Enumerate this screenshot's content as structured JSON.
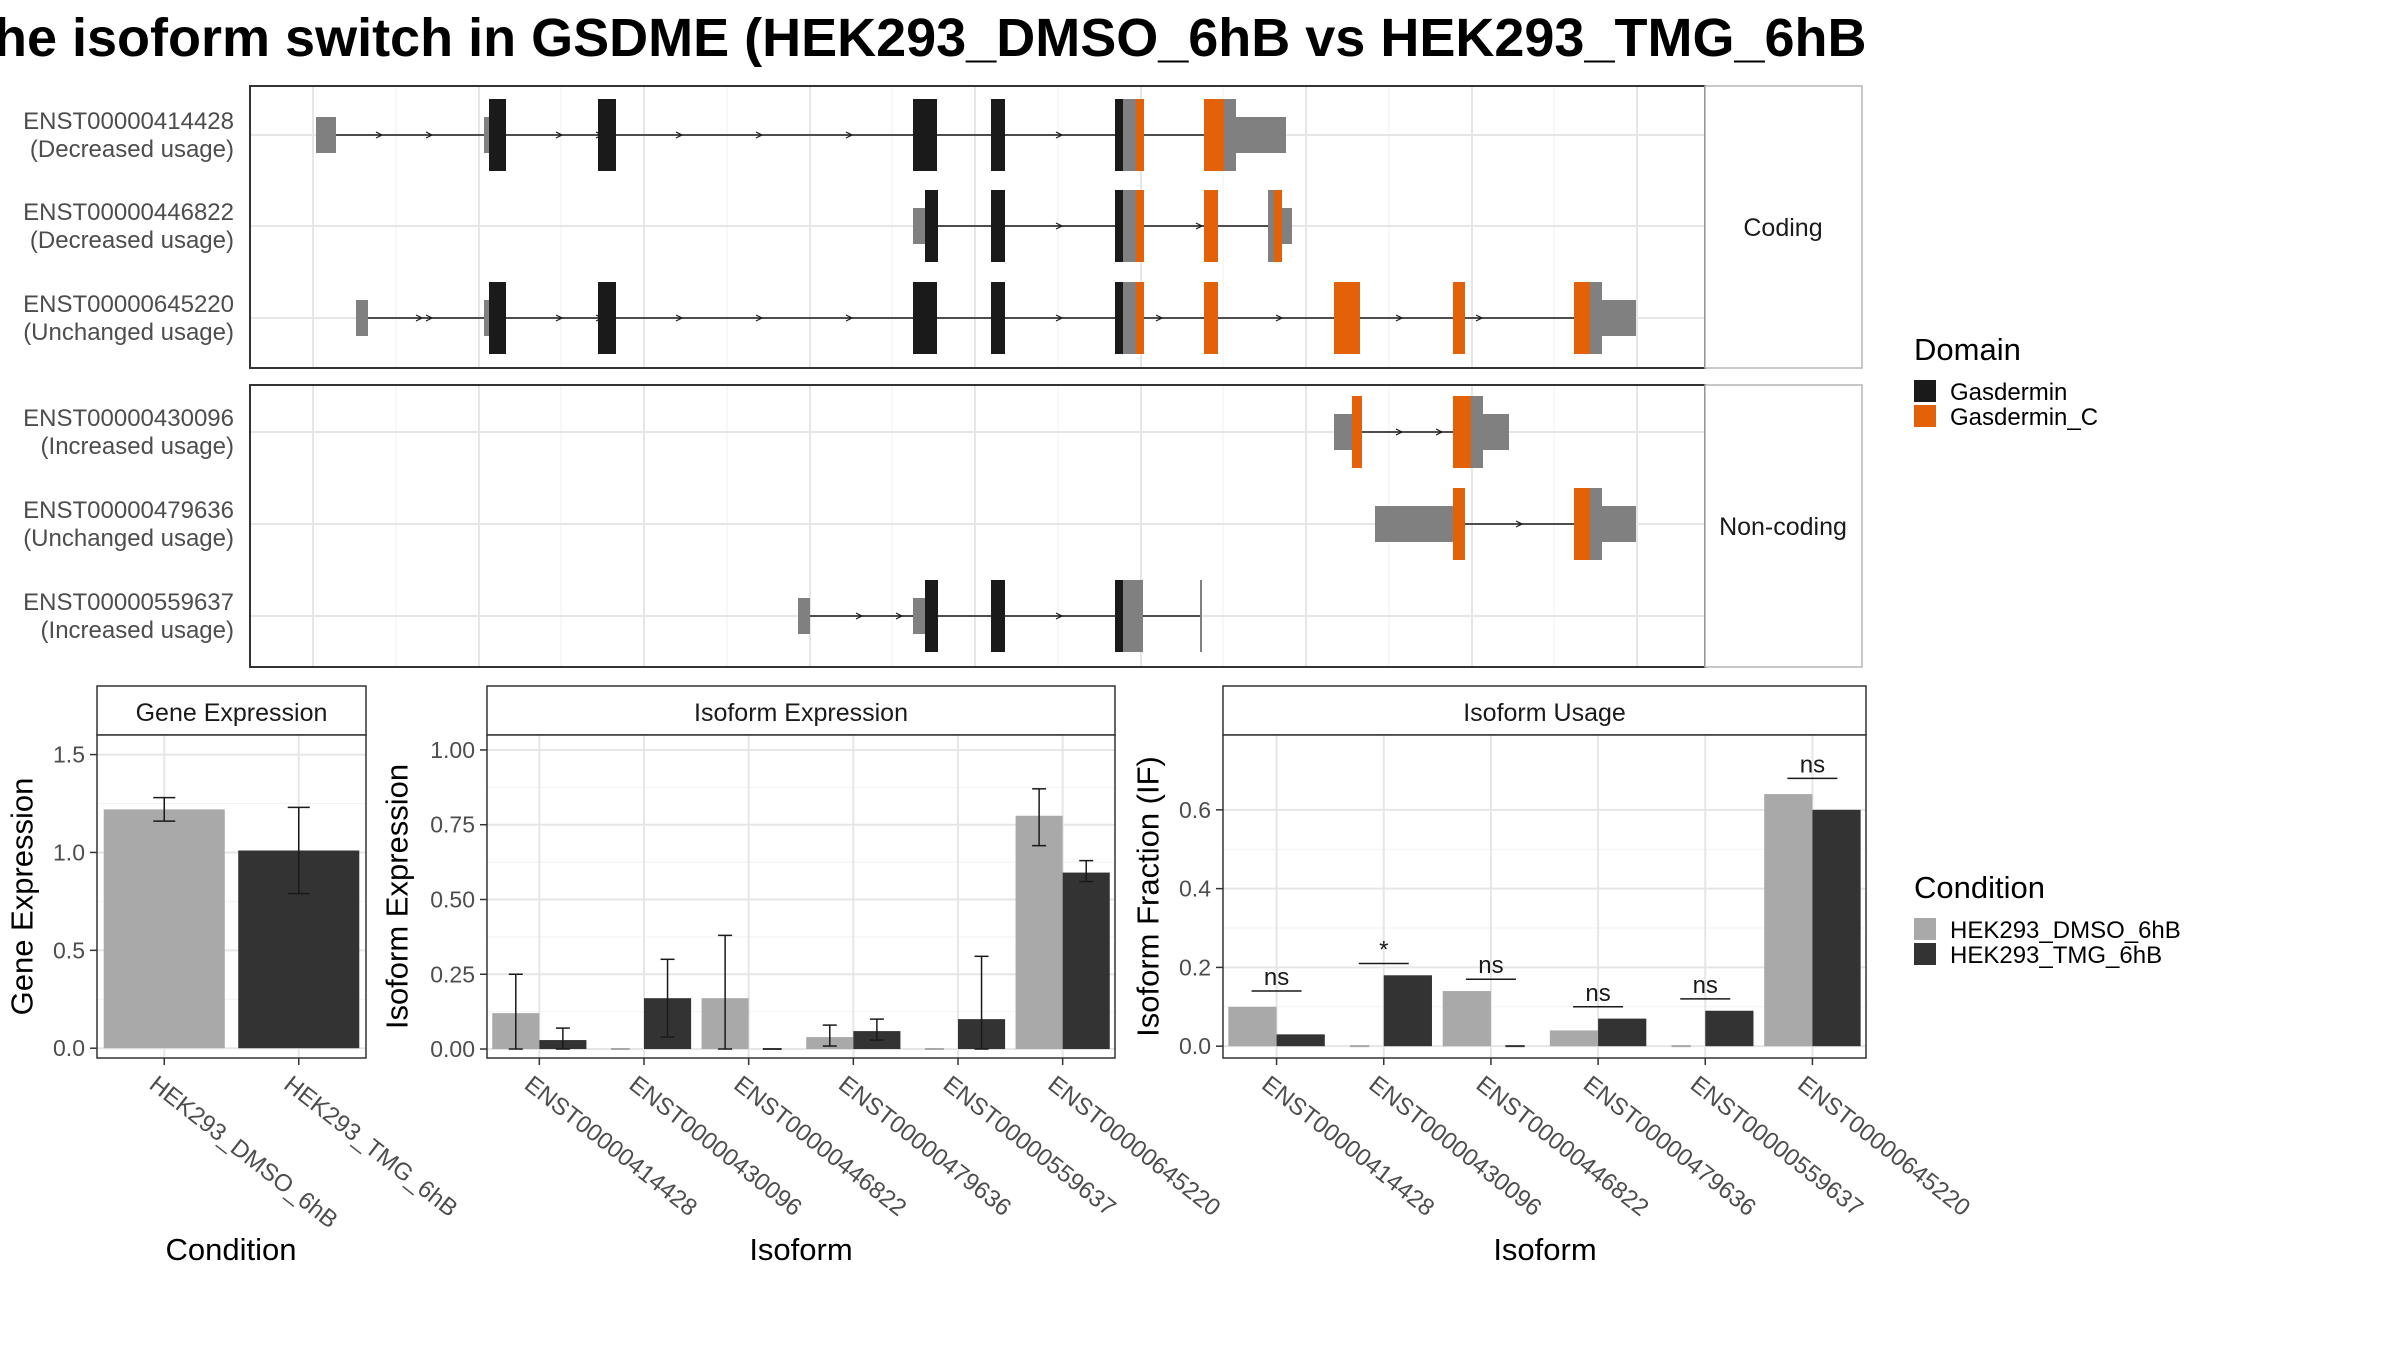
{
  "title": "he isoform switch in GSDME (HEK293_DMSO_6hB vs HEK293_TMG_6hB",
  "structure": {
    "coding_facet": "Coding",
    "noncoding_facet": "Non-coding",
    "transcripts": [
      {
        "id": "ENST00000414428",
        "usage": "(Decreased usage)",
        "facet": "Coding"
      },
      {
        "id": "ENST00000446822",
        "usage": "(Decreased usage)",
        "facet": "Coding"
      },
      {
        "id": "ENST00000645220",
        "usage": "(Unchanged usage)",
        "facet": "Coding"
      },
      {
        "id": "ENST00000430096",
        "usage": "(Increased usage)",
        "facet": "Non-coding"
      },
      {
        "id": "ENST00000479636",
        "usage": "(Unchanged usage)",
        "facet": "Non-coding"
      },
      {
        "id": "ENST00000559637",
        "usage": "(Increased usage)",
        "facet": "Non-coding"
      }
    ]
  },
  "legend_domain": {
    "title": "Domain",
    "items": [
      {
        "label": "Gasdermin",
        "color": "#1a1a1a"
      },
      {
        "label": "Gasdermin_C",
        "color": "#e36209"
      }
    ]
  },
  "legend_condition": {
    "title": "Condition",
    "items": [
      {
        "label": "HEK293_DMSO_6hB",
        "color": "#a9a9a9"
      },
      {
        "label": "HEK293_TMG_6hB",
        "color": "#333333"
      }
    ]
  },
  "chart_data": [
    {
      "type": "bar",
      "title": "Gene Expression",
      "xlabel": "Condition",
      "ylabel": "Gene Expression",
      "ylim": [
        -0.05,
        1.6
      ],
      "yticks": [
        "0.0",
        "0.5",
        "1.0",
        "1.5"
      ],
      "categories": [
        "HEK293_DMSO_6hB",
        "HEK293_TMG_6hB"
      ],
      "values": [
        1.22,
        1.01
      ],
      "errors": [
        [
          1.16,
          1.28
        ],
        [
          0.79,
          1.23
        ]
      ]
    },
    {
      "type": "bar",
      "title": "Isoform Expression",
      "xlabel": "Isoform",
      "ylabel": "Isoform Expression",
      "ylim": [
        -0.03,
        1.05
      ],
      "yticks": [
        "0.00",
        "0.25",
        "0.50",
        "0.75",
        "1.00"
      ],
      "categories": [
        "ENST00000414428",
        "ENST00000430096",
        "ENST00000446822",
        "ENST00000479636",
        "ENST00000559637",
        "ENST00000645220"
      ],
      "series": [
        {
          "name": "HEK293_DMSO_6hB",
          "values": [
            0.12,
            0.0,
            0.17,
            0.04,
            0.0,
            0.78
          ],
          "errors": [
            [
              0.0,
              0.25
            ],
            [
              0.0,
              0.0
            ],
            [
              0.0,
              0.38
            ],
            [
              0.01,
              0.08
            ],
            [
              0.0,
              0.0
            ],
            [
              0.68,
              0.87
            ]
          ]
        },
        {
          "name": "HEK293_TMG_6hB",
          "values": [
            0.03,
            0.17,
            0.0,
            0.06,
            0.1,
            0.59
          ],
          "errors": [
            [
              0.0,
              0.07
            ],
            [
              0.04,
              0.3
            ],
            [
              0.0,
              0.0
            ],
            [
              0.03,
              0.1
            ],
            [
              0.0,
              0.31
            ],
            [
              0.56,
              0.63
            ]
          ]
        }
      ]
    },
    {
      "type": "bar",
      "title": "Isoform Usage",
      "xlabel": "Isoform",
      "ylabel": "Isoform Fraction (IF)",
      "ylim": [
        -0.03,
        0.79
      ],
      "yticks": [
        "0.0",
        "0.2",
        "0.4",
        "0.6"
      ],
      "categories": [
        "ENST00000414428",
        "ENST00000430096",
        "ENST00000446822",
        "ENST00000479636",
        "ENST00000559637",
        "ENST00000645220"
      ],
      "series": [
        {
          "name": "HEK293_DMSO_6hB",
          "values": [
            0.1,
            0.0,
            0.14,
            0.04,
            0.0,
            0.64
          ]
        },
        {
          "name": "HEK293_TMG_6hB",
          "values": [
            0.03,
            0.18,
            0.0,
            0.07,
            0.09,
            0.6
          ]
        }
      ],
      "significance": [
        "ns",
        "*",
        "ns",
        "ns",
        "ns",
        "ns"
      ],
      "significance_y": [
        0.14,
        0.21,
        0.17,
        0.1,
        0.12,
        0.68
      ]
    }
  ]
}
